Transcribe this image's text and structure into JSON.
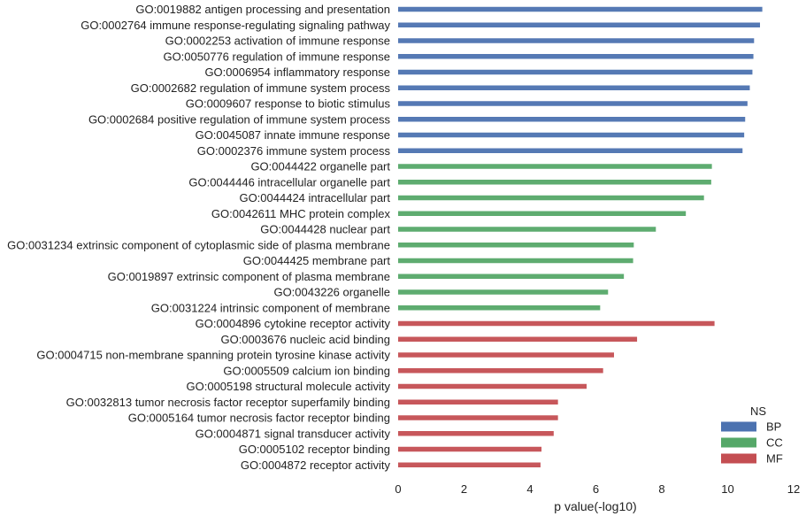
{
  "chart_data": {
    "type": "bar",
    "orientation": "horizontal",
    "xlabel": "p value(-log10)",
    "ylabel": "",
    "xlim": [
      0,
      12
    ],
    "xticks": [
      0,
      2,
      4,
      6,
      8,
      10,
      12
    ],
    "grid": false,
    "legend": {
      "title": "NS",
      "placement": "bottom-right",
      "entries": [
        {
          "name": "BP",
          "color": "#4C72B0"
        },
        {
          "name": "CC",
          "color": "#55A868"
        },
        {
          "name": "MF",
          "color": "#C44E52"
        }
      ]
    },
    "categories": [
      "GO:0019882 antigen processing and presentation",
      "GO:0002764 immune response-regulating signaling pathway",
      "GO:0002253 activation of immune response",
      "GO:0050776 regulation of immune response",
      "GO:0006954 inflammatory response",
      "GO:0002682 regulation of immune system process",
      "GO:0009607 response to biotic stimulus",
      "GO:0002684 positive regulation of immune system process",
      "GO:0045087 innate immune response",
      "GO:0002376 immune system process",
      "GO:0044422 organelle part",
      "GO:0044446 intracellular organelle part",
      "GO:0044424 intracellular part",
      "GO:0042611 MHC protein complex",
      "GO:0044428 nuclear part",
      "GO:0031234 extrinsic component of cytoplasmic side of plasma membrane",
      "GO:0044425 membrane part",
      "GO:0019897 extrinsic component of plasma membrane",
      "GO:0043226 organelle",
      "GO:0031224 intrinsic component of membrane",
      "GO:0004896 cytokine receptor activity",
      "GO:0003676 nucleic acid binding",
      "GO:0004715 non-membrane spanning protein tyrosine kinase activity",
      "GO:0005509 calcium ion binding",
      "GO:0005198 structural molecule activity",
      "GO:0032813 tumor necrosis factor receptor superfamily binding",
      "GO:0005164 tumor necrosis factor receptor binding",
      "GO:0004871 signal transducer activity",
      "GO:0005102 receptor binding",
      "GO:0004872 receptor activity"
    ],
    "values": [
      11.05,
      10.98,
      10.8,
      10.78,
      10.75,
      10.67,
      10.6,
      10.53,
      10.5,
      10.45,
      9.52,
      9.5,
      9.28,
      8.73,
      7.82,
      7.15,
      7.13,
      6.85,
      6.37,
      6.13,
      9.6,
      7.25,
      6.55,
      6.22,
      5.72,
      4.85,
      4.85,
      4.72,
      4.35,
      4.32
    ],
    "groups": [
      "BP",
      "BP",
      "BP",
      "BP",
      "BP",
      "BP",
      "BP",
      "BP",
      "BP",
      "BP",
      "CC",
      "CC",
      "CC",
      "CC",
      "CC",
      "CC",
      "CC",
      "CC",
      "CC",
      "CC",
      "MF",
      "MF",
      "MF",
      "MF",
      "MF",
      "MF",
      "MF",
      "MF",
      "MF",
      "MF"
    ]
  }
}
